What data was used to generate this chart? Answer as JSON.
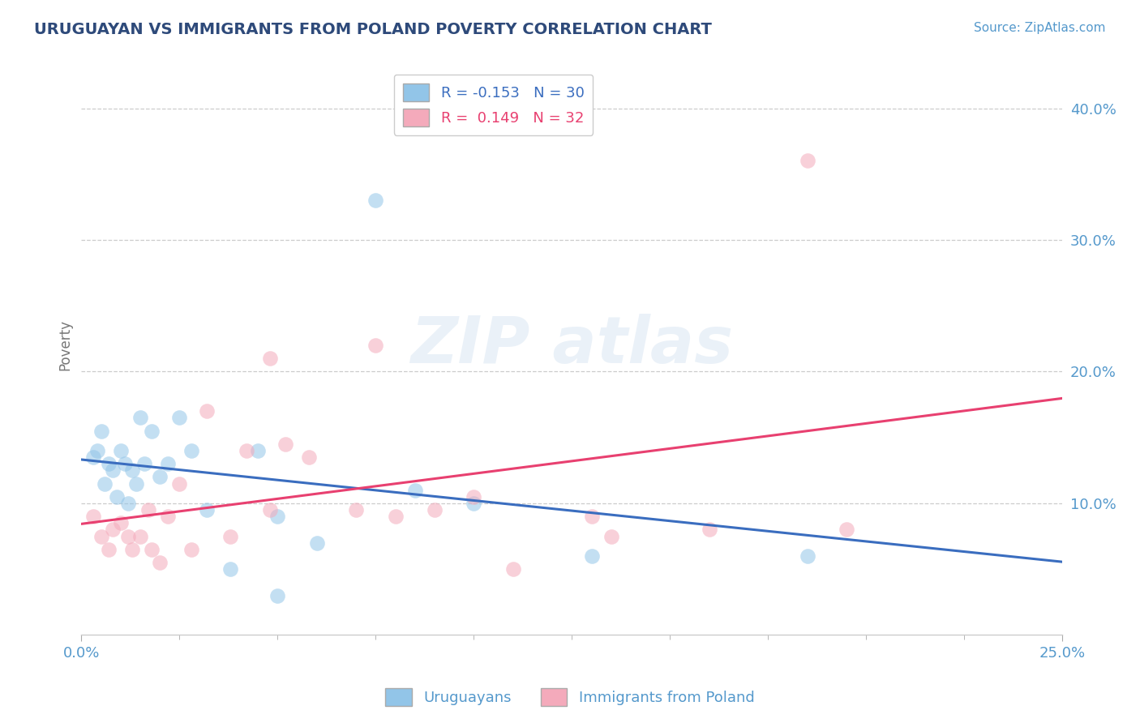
{
  "title": "URUGUAYAN VS IMMIGRANTS FROM POLAND POVERTY CORRELATION CHART",
  "source_text": "Source: ZipAtlas.com",
  "ylabel": "Poverty",
  "xlim": [
    0.0,
    0.25
  ],
  "ylim": [
    0.0,
    0.44
  ],
  "yticks": [
    0.1,
    0.2,
    0.3,
    0.4
  ],
  "ytick_labels": [
    "10.0%",
    "20.0%",
    "30.0%",
    "40.0%"
  ],
  "xticks": [
    0.0,
    0.25
  ],
  "xtick_labels": [
    "0.0%",
    "25.0%"
  ],
  "legend_line1": "R = -0.153   N = 30",
  "legend_line2": "R =  0.149   N = 32",
  "uruguayan_color": "#92C5E8",
  "poland_color": "#F4AABB",
  "uruguayan_line_color": "#3A6DBF",
  "poland_line_color": "#E84070",
  "background_color": "#FFFFFF",
  "grid_color": "#CCCCCC",
  "title_color": "#2E4A7A",
  "axis_tick_color": "#5599CC",
  "uruguayan_x": [
    0.003,
    0.004,
    0.005,
    0.006,
    0.007,
    0.008,
    0.009,
    0.01,
    0.011,
    0.012,
    0.013,
    0.014,
    0.015,
    0.016,
    0.018,
    0.02,
    0.022,
    0.025,
    0.028,
    0.032,
    0.038,
    0.045,
    0.05,
    0.06,
    0.075,
    0.085,
    0.1,
    0.13,
    0.185,
    0.05
  ],
  "uruguayan_y": [
    0.135,
    0.14,
    0.155,
    0.115,
    0.13,
    0.125,
    0.105,
    0.14,
    0.13,
    0.1,
    0.125,
    0.115,
    0.165,
    0.13,
    0.155,
    0.12,
    0.13,
    0.165,
    0.14,
    0.095,
    0.05,
    0.14,
    0.09,
    0.07,
    0.33,
    0.11,
    0.1,
    0.06,
    0.06,
    0.03
  ],
  "poland_x": [
    0.003,
    0.005,
    0.007,
    0.008,
    0.01,
    0.012,
    0.013,
    0.015,
    0.017,
    0.018,
    0.02,
    0.022,
    0.025,
    0.028,
    0.032,
    0.038,
    0.042,
    0.048,
    0.052,
    0.058,
    0.07,
    0.075,
    0.08,
    0.09,
    0.1,
    0.11,
    0.13,
    0.16,
    0.185,
    0.195,
    0.135,
    0.048
  ],
  "poland_y": [
    0.09,
    0.075,
    0.065,
    0.08,
    0.085,
    0.075,
    0.065,
    0.075,
    0.095,
    0.065,
    0.055,
    0.09,
    0.115,
    0.065,
    0.17,
    0.075,
    0.14,
    0.095,
    0.145,
    0.135,
    0.095,
    0.22,
    0.09,
    0.095,
    0.105,
    0.05,
    0.09,
    0.08,
    0.36,
    0.08,
    0.075,
    0.21
  ]
}
